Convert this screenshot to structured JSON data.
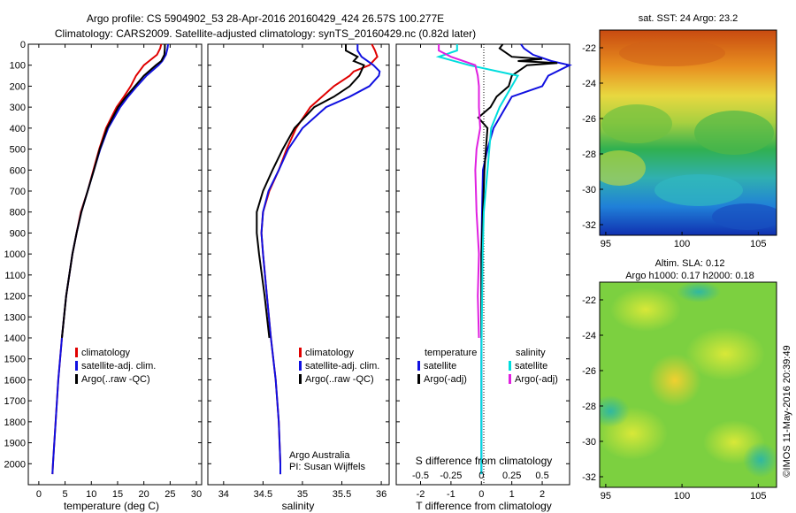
{
  "title_line1": "Argo profile: CS 5904902_53 28-Apr-2016 20160429_424 26.57S 100.277E",
  "title_line2": "Climatology: CARS2009. Satellite-adjusted climatology: synTS_20160429.nc (0.82d later)",
  "credit": "Argo Australia",
  "pi": "PI: Susan Wijffels",
  "timestamp": "©IMOS 11-May-2016 20:39:49",
  "colors": {
    "climatology": "#e00000",
    "satellite": "#1010e0",
    "argo": "#000000",
    "sal_satellite": "#00dddd",
    "sal_argo": "#e020e0"
  },
  "chart_data": [
    {
      "type": "line",
      "xlabel": "temperature (deg C)",
      "ylim": [
        2100,
        0
      ],
      "xlim": [
        -2,
        31
      ],
      "xticks": [
        "0",
        "5",
        "10",
        "15",
        "20",
        "25",
        "30"
      ],
      "yticks": [
        "0",
        "100",
        "200",
        "300",
        "400",
        "500",
        "600",
        "700",
        "800",
        "900",
        "1000",
        "1100",
        "1200",
        "1300",
        "1400",
        "1500",
        "1600",
        "1700",
        "1800",
        "1900",
        "2000"
      ],
      "legend": [
        "climatology",
        "satellite-adj. clim.",
        "Argo(..raw -QC)"
      ],
      "series": [
        {
          "name": "climatology",
          "y": [
            0,
            20,
            50,
            80,
            100,
            150,
            200,
            250,
            300,
            400,
            500,
            600,
            700,
            800,
            900,
            1000,
            1200,
            1400,
            1600,
            1800,
            2000,
            2050
          ],
          "values": [
            23.3,
            23.1,
            22.5,
            21,
            20,
            18.5,
            17.5,
            16.2,
            14.8,
            12.8,
            11.5,
            10.4,
            9.3,
            8.0,
            7.2,
            6.4,
            5.2,
            4.4,
            3.7,
            3.2,
            2.7,
            2.6
          ]
        },
        {
          "name": "satellite-adj. clim.",
          "y": [
            0,
            20,
            50,
            80,
            100,
            150,
            200,
            250,
            300,
            400,
            500,
            600,
            700,
            800,
            900,
            1000,
            1200,
            1400,
            1600,
            1800,
            2000,
            2050
          ],
          "values": [
            24.6,
            24.5,
            24.2,
            23.5,
            22.8,
            20.5,
            18.7,
            17.0,
            15.5,
            13.2,
            11.7,
            10.5,
            9.3,
            8.1,
            7.2,
            6.4,
            5.2,
            4.4,
            3.7,
            3.2,
            2.7,
            2.6
          ]
        },
        {
          "name": "Argo(..raw -QC)",
          "y": [
            0,
            20,
            50,
            80,
            100,
            150,
            200,
            250,
            300,
            400,
            500,
            600,
            700,
            800,
            900,
            1000,
            1200,
            1400
          ],
          "values": [
            24.0,
            24.0,
            23.9,
            23.3,
            22.3,
            20.0,
            18.3,
            16.6,
            15.1,
            13.0,
            11.6,
            10.5,
            9.3,
            8.1,
            7.2,
            6.4,
            5.2,
            4.4
          ]
        }
      ]
    },
    {
      "type": "line",
      "xlabel": "salinity",
      "ylim": [
        2100,
        0
      ],
      "xlim": [
        33.8,
        36.1
      ],
      "xticks": [
        "34",
        "34.5",
        "35",
        "35.5",
        "36"
      ],
      "legend": [
        "climatology",
        "satellite-adj. clim.",
        "Argo(..raw -QC)"
      ],
      "series": [
        {
          "name": "climatology",
          "y": [
            0,
            30,
            60,
            100,
            130,
            150,
            200,
            250,
            300,
            400,
            500,
            600,
            700,
            800,
            900,
            1000,
            1200,
            1400,
            1600,
            1800,
            2000,
            2050
          ],
          "values": [
            35.88,
            35.92,
            35.95,
            35.85,
            35.65,
            35.6,
            35.4,
            35.25,
            35.1,
            34.92,
            34.8,
            34.7,
            34.58,
            34.5,
            34.48,
            34.5,
            34.55,
            34.6,
            34.66,
            34.7,
            34.72,
            34.72
          ]
        },
        {
          "name": "satellite-adj. clim.",
          "y": [
            0,
            30,
            60,
            100,
            130,
            150,
            200,
            250,
            300,
            400,
            500,
            600,
            700,
            800,
            900,
            1000,
            1200,
            1400,
            1600,
            1800,
            2000,
            2050
          ],
          "values": [
            35.7,
            35.7,
            35.75,
            35.9,
            35.98,
            35.97,
            35.85,
            35.6,
            35.3,
            35.0,
            34.82,
            34.7,
            34.57,
            34.5,
            34.48,
            34.5,
            34.55,
            34.6,
            34.66,
            34.7,
            34.72,
            34.72
          ]
        },
        {
          "name": "Argo(..raw -QC)",
          "y": [
            0,
            30,
            60,
            80,
            100,
            150,
            200,
            250,
            300,
            400,
            500,
            600,
            700,
            800,
            900,
            1000,
            1200,
            1400
          ],
          "values": [
            35.55,
            35.55,
            35.7,
            35.65,
            35.78,
            35.72,
            35.6,
            35.4,
            35.15,
            34.9,
            34.75,
            34.62,
            34.5,
            34.42,
            34.42,
            34.45,
            34.52,
            34.58
          ]
        }
      ]
    },
    {
      "type": "line",
      "xlabel": "T difference from climatology",
      "top_label": "S difference from climatology",
      "ylim": [
        2100,
        0
      ],
      "xlim": [
        -2.8,
        2.9
      ],
      "xticks": [
        "-2",
        "-1",
        "0",
        "1",
        "2"
      ],
      "top_ticks": [
        "-0.5",
        "-0.25",
        "0",
        "0.25",
        "0.5"
      ],
      "legend_groups": [
        {
          "title": "temperature",
          "items": [
            "satellite",
            "Argo(-adj)"
          ]
        },
        {
          "title": "salinity",
          "items": [
            "satellite",
            "Argo(-adj)"
          ]
        }
      ],
      "series": [
        {
          "name": "temperature satellite",
          "y": [
            0,
            20,
            50,
            80,
            100,
            150,
            200,
            250,
            300,
            350,
            400,
            500,
            600,
            800,
            1000,
            1500,
            2000,
            2050
          ],
          "values": [
            1.3,
            1.4,
            1.7,
            2.3,
            2.9,
            2.2,
            2.0,
            1.0,
            0.8,
            0.6,
            0.4,
            0.2,
            0.05,
            0.02,
            0,
            0,
            0,
            0
          ]
        },
        {
          "name": "temperature Argo(-adj)",
          "y": [
            0,
            20,
            60,
            70,
            80,
            90,
            100,
            150,
            200,
            250,
            300,
            350,
            400,
            500,
            600,
            800,
            1000,
            1400
          ],
          "values": [
            0.7,
            0.6,
            1.0,
            2.0,
            1.2,
            2.5,
            1.5,
            1.0,
            0.9,
            0.5,
            0.3,
            -0.1,
            0.2,
            0.15,
            0.1,
            0.05,
            0,
            0
          ]
        },
        {
          "name": "salinity satellite",
          "y": [
            0,
            30,
            60,
            100,
            150,
            200,
            300,
            400,
            600,
            800,
            1000,
            1500,
            2000,
            2050
          ],
          "values": [
            -0.2,
            -0.2,
            -0.35,
            -0.1,
            0.3,
            0.25,
            0.15,
            0.08,
            0.05,
            0.02,
            0.01,
            0,
            0,
            0
          ]
        },
        {
          "name": "salinity Argo(-adj)",
          "y": [
            0,
            30,
            60,
            100,
            150,
            200,
            300,
            400,
            500,
            600,
            800,
            1000,
            1200,
            1400
          ],
          "values": [
            -0.35,
            -0.35,
            -0.25,
            -0.05,
            -0.03,
            -0.02,
            -0.02,
            -0.01,
            -0.04,
            -0.05,
            -0.04,
            -0.02,
            -0.03,
            -0.02
          ]
        }
      ]
    },
    {
      "type": "heatmap",
      "title": "sat. SST: 24 Argo: 23.2",
      "xticks": [
        "95",
        "100",
        "105"
      ],
      "yticks": [
        "-22",
        "-24",
        "-26",
        "-28",
        "-30",
        "-32"
      ],
      "note": "colored map of sea surface temperature, warm in north, cool in south"
    },
    {
      "type": "heatmap",
      "title_line1": "Altim. SLA: 0.12",
      "title_line2": "Argo h1000: 0.17 h2000: 0.18",
      "xticks": [
        "95",
        "100",
        "105"
      ],
      "yticks": [
        "-22",
        "-24",
        "-26",
        "-28",
        "-30",
        "-32"
      ],
      "note": "colored map of sea level anomaly, mostly green with yellow patches"
    }
  ]
}
